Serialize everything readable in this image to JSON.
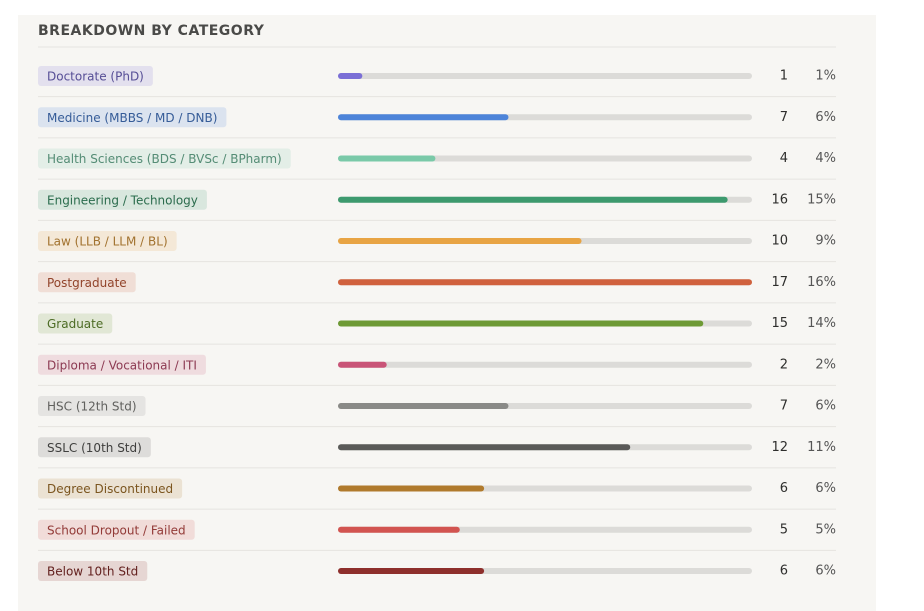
{
  "chart_data": {
    "type": "bar",
    "orientation": "horizontal",
    "title": "BREAKDOWN BY CATEGORY",
    "categories": [
      "Doctorate (PhD)",
      "Medicine (MBBS / MD / DNB)",
      "Health Sciences (BDS / BVSc / BPharm)",
      "Engineering / Technology",
      "Law (LLB / LLM / BL)",
      "Postgraduate",
      "Graduate",
      "Diploma / Vocational / ITI",
      "HSC (12th Std)",
      "SSLC (10th Std)",
      "Degree Discontinued",
      "School Dropout / Failed",
      "Below 10th Std"
    ],
    "values": [
      1,
      7,
      4,
      16,
      10,
      17,
      15,
      2,
      7,
      12,
      6,
      5,
      6
    ],
    "shares": {
      "values": [
        1,
        6,
        4,
        15,
        9,
        16,
        14,
        2,
        6,
        11,
        6,
        5,
        6
      ],
      "value_labels": [
        "1%",
        "6%",
        "4%",
        "15%",
        "9%",
        "16%",
        "14%",
        "2%",
        "6%",
        "11%",
        "6%",
        "5%",
        "6%"
      ]
    },
    "colors": [
      "#7b6fd6",
      "#4d84d9",
      "#7ac9a8",
      "#3d9a6e",
      "#e8a444",
      "#d0613d",
      "#6e9a35",
      "#c95477",
      "#8a8a87",
      "#5a5a58",
      "#b07a2c",
      "#d25450",
      "#8e2f2c"
    ],
    "xlim": [
      0,
      17
    ]
  }
}
